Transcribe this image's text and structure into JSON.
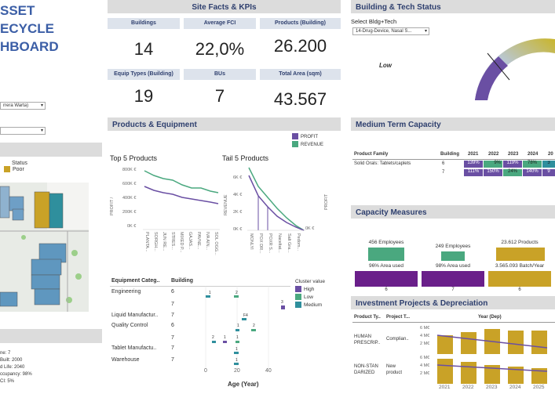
{
  "dashboard_title": [
    "SSET",
    "ECYCLE",
    "HBOARD"
  ],
  "left": {
    "dropdown1": "rrera Warta)",
    "dropdown2": "",
    "status_label": "Status",
    "status_value": "Poor",
    "status_color": "#c9a227",
    "building_info": [
      "ne: 7",
      "Built: 2000",
      "d Life: 2040",
      "ccupancy: 98%",
      "CI: 5%"
    ]
  },
  "kpis": {
    "title": "Site Facts & KPIs",
    "items": [
      {
        "label": "Buildings",
        "value": "14"
      },
      {
        "label": "Average FCI",
        "value": "22,0%"
      },
      {
        "label": "Products (Building)",
        "value": "26.200"
      },
      {
        "label": "Equip Types (Building)",
        "value": "19"
      },
      {
        "label": "BUs",
        "value": "7"
      },
      {
        "label": "Total Area (sqm)",
        "value": "43.567"
      }
    ]
  },
  "products": {
    "title": "Products & Equipment",
    "legend": [
      {
        "name": "PROFIT",
        "color": "#6a4fa3"
      },
      {
        "name": "REVENUE",
        "color": "#4aa87f"
      }
    ],
    "top5": {
      "title": "Top 5 Products",
      "ylabel": "PROFIT /",
      "yticks": [
        "800K €",
        "600K €",
        "400K €",
        "200K €",
        "0K €"
      ],
      "xticks": [
        "PLANTA...",
        "SORGH...",
        "JUN RE...",
        "STRES...",
        "MIXED P...",
        "GAJAS...",
        "PAVNE...",
        "IVA AIN...",
        "SOL OGG..."
      ]
    },
    "tail5": {
      "title": "Tail 5 Products",
      "ylabel": "REVENUE",
      "ylabel_right": "PROFIT",
      "yticks": [
        "6K €",
        "4K €",
        "2K €",
        "0K €"
      ],
      "right_tick": "0K €",
      "xticks": [
        "MONLYI",
        "POX DR...",
        "POXR S...",
        "Naceltat...",
        "Salt Gra...",
        "Pedom..."
      ]
    }
  },
  "equipment": {
    "col1": "Equipment Categ..",
    "col2": "Building",
    "legend_title": "Cluster value",
    "legend": [
      {
        "name": "High",
        "color": "#6a4fa3"
      },
      {
        "name": "Low",
        "color": "#4aa87f"
      },
      {
        "name": "Medium",
        "color": "#2f8f9d"
      }
    ],
    "rows": [
      {
        "cat": "Engineering",
        "bld": "6"
      },
      {
        "cat": "",
        "bld": "7"
      },
      {
        "cat": "Liquid Manufactur..",
        "bld": "7"
      },
      {
        "cat": "Quality Control",
        "bld": "6"
      },
      {
        "cat": "",
        "bld": "7"
      },
      {
        "cat": "Tablet Manufactu..",
        "bld": "7"
      },
      {
        "cat": "Warehouse",
        "bld": "7"
      }
    ],
    "xticks": [
      "0",
      "20",
      "40"
    ],
    "xlabel": "Age (Year)"
  },
  "tech": {
    "title": "Building & Tech Status",
    "select_label": "Select Bldg+Tech",
    "select_value": "14-Drug-Device, Nasal S...",
    "gauge_label": "Low"
  },
  "capacity": {
    "title": "Medium Term Capacity",
    "headers": [
      "Product Family",
      "Building",
      "2021",
      "2022",
      "2023",
      "2024",
      "20"
    ],
    "rows": [
      {
        "family": "Solid Orals: Tablets/caplets",
        "bld": "6",
        "cells": [
          "139%",
          "9%",
          "119%",
          "78%",
          "3"
        ]
      },
      {
        "family": "",
        "bld": "7",
        "cells": [
          "111%",
          "150%",
          "24%",
          "140%",
          "9"
        ]
      }
    ]
  },
  "measures": {
    "title": "Capacity Measures",
    "groups": [
      {
        "top": "456 Employees",
        "bottom": "96% Area used",
        "bld": "6"
      },
      {
        "top": "249 Employees",
        "bottom": "98% Area used",
        "bld": "7"
      },
      {
        "top": "23.612 Products",
        "bottom": "3.565.093 Batch/Year",
        "bld": "6"
      }
    ]
  },
  "investment": {
    "title": "Investment Projects & Depreciation",
    "col1": "Product Ty..",
    "col2": "Project T...",
    "col3": "Year (Dep)",
    "rows": [
      {
        "type": [
          "HUMAN",
          "PRESCRIP.."
        ],
        "project": "Complian..",
        "yticks": [
          "6 M€",
          "4 M€",
          "2 M€"
        ]
      },
      {
        "type": [
          "NON-STAN",
          "DARIZED"
        ],
        "project": [
          "New",
          "product"
        ],
        "yticks": [
          "6 M€",
          "4 M€",
          "2 M€"
        ]
      }
    ],
    "years": [
      "2021",
      "2022",
      "2023",
      "2024",
      "2025"
    ]
  }
}
